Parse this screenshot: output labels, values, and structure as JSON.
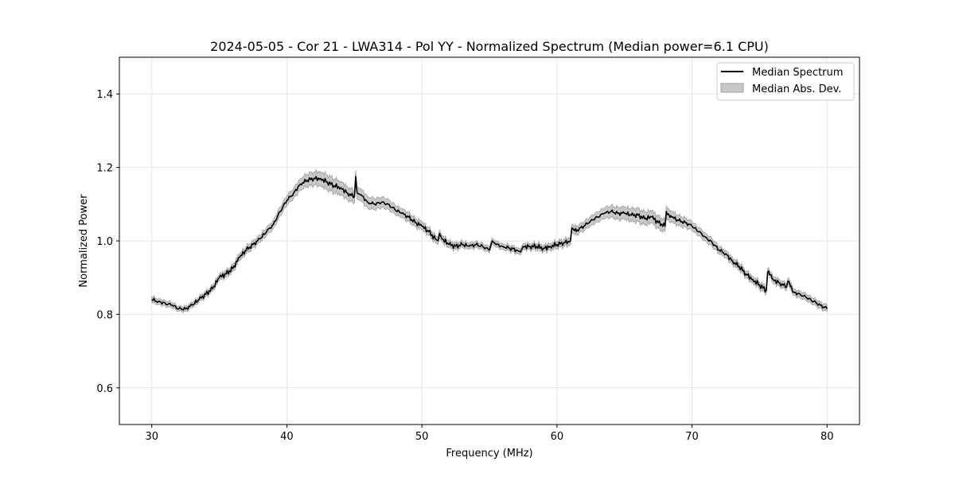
{
  "chart_data": {
    "type": "line",
    "title": "2024-05-05 - Cor 21 - LWA314 - Pol YY - Normalized Spectrum (Median power=6.1 CPU)",
    "xlabel": "Frequency (MHz)",
    "ylabel": "Normalized Power",
    "xlim": [
      27.6,
      82.4
    ],
    "ylim": [
      0.5,
      1.5
    ],
    "xticks": [
      30,
      40,
      50,
      60,
      70,
      80
    ],
    "yticks": [
      0.6,
      0.8,
      1.0,
      1.2,
      1.4
    ],
    "xtick_labels": [
      "30",
      "40",
      "50",
      "60",
      "70",
      "80"
    ],
    "ytick_labels": [
      "0.6",
      "0.8",
      "1.0",
      "1.2",
      "1.4"
    ],
    "grid": true,
    "legend_position": "top-right",
    "colors": {
      "line": "#000000",
      "band": "#c8c8c8",
      "band_edge": "#a0a0a0",
      "grid": "#e6e6e6"
    },
    "series": [
      {
        "name": "Median Spectrum",
        "kind": "line",
        "x": [
          30,
          30.5,
          31,
          31.5,
          32,
          32.5,
          33,
          33.5,
          34,
          34.5,
          35,
          35.5,
          36,
          36.5,
          37,
          37.5,
          38,
          38.5,
          39,
          39.5,
          40,
          40.5,
          41,
          41.5,
          42,
          42.5,
          43,
          43.5,
          44,
          44.5,
          45,
          45.1,
          45.2,
          45.5,
          46,
          46.5,
          47,
          47.5,
          48,
          48.5,
          49,
          49.5,
          50,
          50.5,
          51,
          51.2,
          51.3,
          51.5,
          52,
          52.5,
          53,
          53.5,
          54,
          54.5,
          55,
          55.2,
          55.5,
          56,
          56.5,
          57,
          57.3,
          57.5,
          58,
          58.5,
          59,
          59.5,
          60,
          60.5,
          61,
          61.1,
          61.5,
          62,
          62.5,
          63,
          63.5,
          64,
          64.5,
          65,
          65.5,
          66,
          66.5,
          67,
          67.5,
          68,
          68.1,
          68.5,
          69,
          69.5,
          70,
          70.5,
          71,
          71.5,
          72,
          72.5,
          73,
          73.5,
          74,
          74.5,
          75,
          75.5,
          75.6,
          76,
          76.5,
          77,
          77.1,
          77.5,
          78,
          78.5,
          79,
          79.5,
          80
        ],
        "y": [
          0.84,
          0.835,
          0.83,
          0.825,
          0.815,
          0.815,
          0.825,
          0.84,
          0.855,
          0.87,
          0.9,
          0.91,
          0.925,
          0.955,
          0.975,
          0.99,
          1.005,
          1.025,
          1.045,
          1.08,
          1.11,
          1.13,
          1.155,
          1.165,
          1.17,
          1.17,
          1.16,
          1.15,
          1.145,
          1.13,
          1.12,
          1.175,
          1.13,
          1.125,
          1.105,
          1.1,
          1.105,
          1.1,
          1.085,
          1.075,
          1.065,
          1.05,
          1.04,
          1.025,
          1.005,
          1.0,
          1.02,
          1.005,
          0.99,
          0.985,
          0.99,
          0.985,
          0.99,
          0.985,
          0.975,
          1.0,
          0.99,
          0.985,
          0.98,
          0.975,
          0.97,
          0.985,
          0.985,
          0.985,
          0.98,
          0.985,
          0.99,
          0.995,
          1.0,
          1.035,
          1.03,
          1.04,
          1.055,
          1.065,
          1.075,
          1.08,
          1.075,
          1.075,
          1.07,
          1.07,
          1.06,
          1.065,
          1.05,
          1.04,
          1.08,
          1.065,
          1.055,
          1.05,
          1.04,
          1.025,
          1.01,
          0.995,
          0.975,
          0.965,
          0.945,
          0.93,
          0.91,
          0.895,
          0.88,
          0.865,
          0.915,
          0.895,
          0.885,
          0.875,
          0.89,
          0.86,
          0.855,
          0.845,
          0.835,
          0.825,
          0.815
        ]
      },
      {
        "name": "Median Abs. Dev.",
        "kind": "band",
        "x": [
          30,
          32,
          34,
          36,
          38,
          40,
          42,
          43,
          44,
          46,
          48,
          50,
          52,
          54,
          56,
          58,
          60,
          62,
          64,
          66,
          68,
          70,
          72,
          74,
          76,
          78,
          80
        ],
        "halfwidth": [
          0.008,
          0.007,
          0.007,
          0.009,
          0.01,
          0.013,
          0.018,
          0.02,
          0.018,
          0.016,
          0.013,
          0.011,
          0.009,
          0.008,
          0.008,
          0.008,
          0.009,
          0.012,
          0.016,
          0.018,
          0.016,
          0.012,
          0.01,
          0.009,
          0.009,
          0.009,
          0.009
        ]
      }
    ]
  },
  "legend": {
    "entries": [
      "Median Spectrum",
      "Median Abs. Dev."
    ]
  }
}
